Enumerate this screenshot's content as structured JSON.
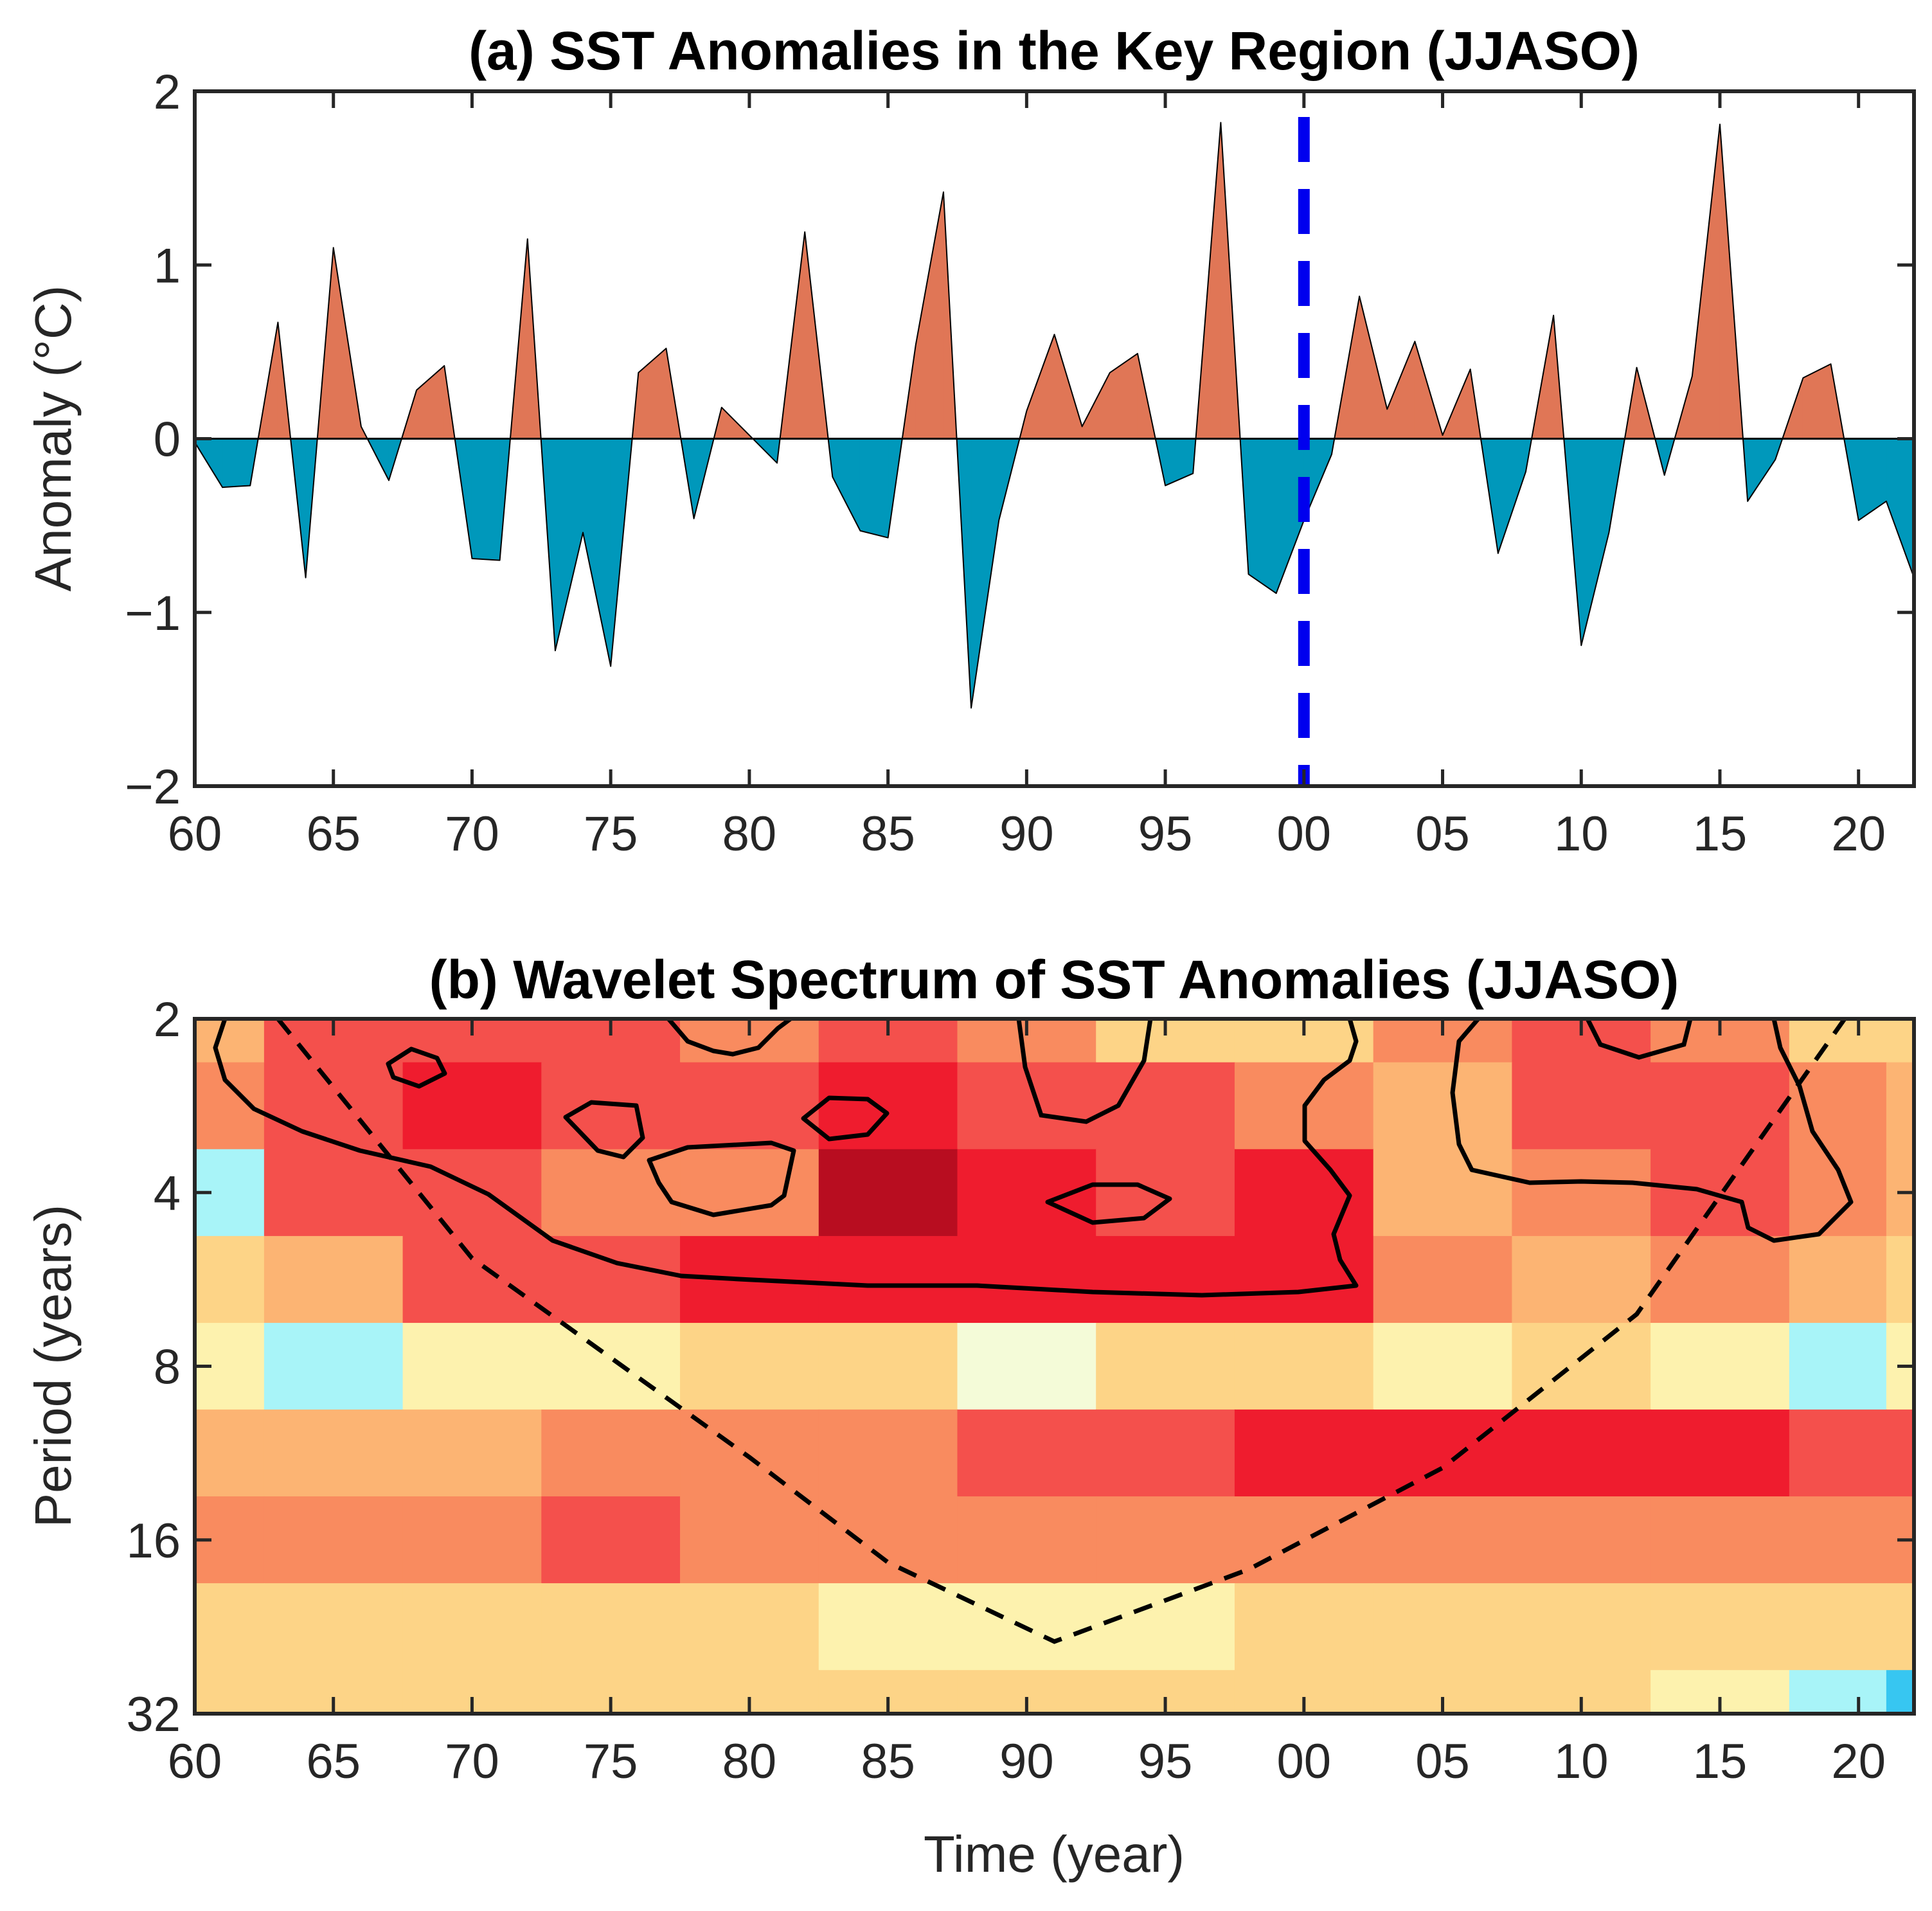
{
  "chart_data": [
    {
      "type": "area",
      "title": "(a) SST Anomalies in the Key Region (JJASO)",
      "ylabel": "Anomaly (°C)",
      "xlabel": "",
      "xlim": [
        1960,
        2022
      ],
      "ylim": [
        -2,
        2
      ],
      "yticks": [
        2,
        1,
        0,
        -1,
        -2
      ],
      "ytick_labels": [
        "2",
        "1",
        "0",
        "−1",
        "−2"
      ],
      "xtick_labels": [
        "60",
        "65",
        "70",
        "75",
        "80",
        "85",
        "90",
        "95",
        "00",
        "05",
        "10",
        "15",
        "20"
      ],
      "x": [
        1960,
        1961,
        1962,
        1963,
        1964,
        1965,
        1966,
        1967,
        1968,
        1969,
        1970,
        1971,
        1972,
        1973,
        1974,
        1975,
        1976,
        1977,
        1978,
        1979,
        1980,
        1981,
        1982,
        1983,
        1984,
        1985,
        1986,
        1987,
        1988,
        1989,
        1990,
        1991,
        1992,
        1993,
        1994,
        1995,
        1996,
        1997,
        1998,
        1999,
        2000,
        2001,
        2002,
        2003,
        2004,
        2005,
        2006,
        2007,
        2008,
        2009,
        2010,
        2011,
        2012,
        2013,
        2014,
        2015,
        2016,
        2017,
        2018,
        2019,
        2020,
        2021,
        2022
      ],
      "values": [
        -0.02,
        -0.28,
        -0.27,
        0.67,
        -0.8,
        1.1,
        0.07,
        -0.24,
        0.28,
        0.42,
        -0.69,
        -0.7,
        1.15,
        -1.22,
        -0.54,
        -1.31,
        0.38,
        0.52,
        -0.46,
        0.18,
        0.02,
        -0.14,
        1.19,
        -0.22,
        -0.53,
        -0.57,
        0.54,
        1.42,
        -1.55,
        -0.47,
        0.16,
        0.6,
        0.07,
        0.38,
        0.49,
        -0.27,
        -0.2,
        1.82,
        -0.78,
        -0.89,
        -0.47,
        -0.09,
        0.82,
        0.17,
        0.56,
        0.02,
        0.4,
        -0.66,
        -0.19,
        0.71,
        -1.19,
        -0.54,
        0.41,
        -0.21,
        0.36,
        1.81,
        -0.36,
        -0.12,
        0.35,
        0.43,
        -0.47,
        -0.36,
        -0.8
      ],
      "positive_color": "#e07656",
      "negative_color": "#0098bb",
      "reference_line": {
        "x": 2000,
        "style": "dashed",
        "color": "#0000ee"
      }
    },
    {
      "type": "heatmap",
      "title": "(b) Wavelet Spectrum of SST Anomalies (JJASO)",
      "xlabel": "Time (year)",
      "ylabel": "Period (years)",
      "xlim": [
        1960,
        2022
      ],
      "ylim": [
        2,
        32
      ],
      "yscale": "log2",
      "ytick_labels": [
        "2",
        "4",
        "8",
        "16",
        "32"
      ],
      "xtick_labels": [
        "60",
        "65",
        "70",
        "75",
        "80",
        "85",
        "90",
        "95",
        "00",
        "05",
        "10",
        "15",
        "20"
      ],
      "levels_colors": [
        "#0b2fd6",
        "#1e7ff0",
        "#37c6f1",
        "#a8f4f8",
        "#f4fbd8",
        "#fdf2ae",
        "#fdd487",
        "#fcb473",
        "#f98b5f",
        "#f4504c",
        "#ef1c2e",
        "#b80d20"
      ],
      "power_grid_x": [
        1960,
        1965,
        1970,
        1975,
        1980,
        1985,
        1990,
        1995,
        2000,
        2005,
        2010,
        2015,
        2020,
        2022
      ],
      "power_grid_period": [
        2,
        2.83,
        4,
        5.66,
        8,
        11.3,
        16,
        22.6,
        32
      ],
      "power_levels": [
        [
          7,
          9,
          9,
          9,
          8,
          9,
          8,
          6,
          6,
          8,
          9,
          8,
          6,
          6
        ],
        [
          8,
          9,
          10,
          9,
          9,
          10,
          9,
          9,
          8,
          7,
          9,
          9,
          8,
          7
        ],
        [
          3,
          9,
          9,
          8,
          8,
          11,
          10,
          9,
          10,
          7,
          8,
          9,
          8,
          7
        ],
        [
          6,
          7,
          9,
          9,
          10,
          10,
          10,
          10,
          10,
          8,
          7,
          8,
          7,
          6
        ],
        [
          5,
          3,
          5,
          5,
          6,
          6,
          4,
          6,
          6,
          5,
          6,
          5,
          3,
          5
        ],
        [
          7,
          7,
          7,
          8,
          8,
          8,
          9,
          9,
          10,
          10,
          10,
          10,
          9,
          9
        ],
        [
          8,
          8,
          8,
          9,
          8,
          8,
          8,
          8,
          8,
          8,
          8,
          8,
          8,
          8
        ],
        [
          6,
          6,
          6,
          6,
          6,
          5,
          5,
          5,
          6,
          6,
          6,
          6,
          6,
          6
        ],
        [
          6,
          6,
          6,
          6,
          6,
          6,
          6,
          6,
          6,
          6,
          6,
          5,
          3,
          2
        ]
      ],
      "cone_of_influence": {
        "x": [
          1963,
          1970,
          1980,
          1985,
          1991,
          1998,
          2005,
          2012,
          2019.5
        ],
        "period": [
          2,
          5.2,
          11.5,
          17.5,
          24,
          18,
          12,
          6.5,
          2
        ]
      }
    }
  ]
}
